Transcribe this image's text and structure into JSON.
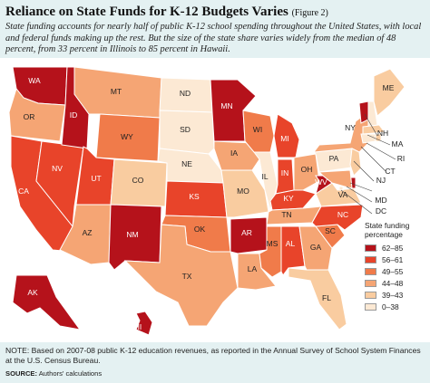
{
  "title": {
    "main": "Reliance on State Funds for K-12 Budgets Varies",
    "figure": "(Figure 2)"
  },
  "subtitle": "State funding accounts for nearly half of public K-12 school spending throughout the United States, with local and federal funds making up the rest. But the size of the state share varies widely from the median of 48 percent, from 33 percent in Illinois to 85 percent in Hawaii.",
  "legend": {
    "title": "State funding percentage",
    "items": [
      {
        "label": "62–85",
        "color": "#b5121b"
      },
      {
        "label": "56–61",
        "color": "#e8442a"
      },
      {
        "label": "49–55",
        "color": "#f07b4a"
      },
      {
        "label": "44–48",
        "color": "#f5a574"
      },
      {
        "label": "39–43",
        "color": "#f9cca0"
      },
      {
        "label": "0–38",
        "color": "#fce9d4"
      }
    ]
  },
  "states": [
    {
      "abbr": "WA",
      "bin": 0
    },
    {
      "abbr": "OR",
      "bin": 3
    },
    {
      "abbr": "CA",
      "bin": 1
    },
    {
      "abbr": "NV",
      "bin": 1
    },
    {
      "abbr": "ID",
      "bin": 0
    },
    {
      "abbr": "MT",
      "bin": 3
    },
    {
      "abbr": "WY",
      "bin": 2
    },
    {
      "abbr": "UT",
      "bin": 1
    },
    {
      "abbr": "AZ",
      "bin": 3
    },
    {
      "abbr": "CO",
      "bin": 4
    },
    {
      "abbr": "NM",
      "bin": 0
    },
    {
      "abbr": "ND",
      "bin": 5
    },
    {
      "abbr": "SD",
      "bin": 5
    },
    {
      "abbr": "NE",
      "bin": 5
    },
    {
      "abbr": "KS",
      "bin": 1
    },
    {
      "abbr": "OK",
      "bin": 2
    },
    {
      "abbr": "TX",
      "bin": 3
    },
    {
      "abbr": "MN",
      "bin": 0
    },
    {
      "abbr": "IA",
      "bin": 3
    },
    {
      "abbr": "MO",
      "bin": 4
    },
    {
      "abbr": "AR",
      "bin": 0
    },
    {
      "abbr": "LA",
      "bin": 3
    },
    {
      "abbr": "WI",
      "bin": 2
    },
    {
      "abbr": "IL",
      "bin": 5
    },
    {
      "abbr": "MI",
      "bin": 1
    },
    {
      "abbr": "IN",
      "bin": 1
    },
    {
      "abbr": "OH",
      "bin": 3
    },
    {
      "abbr": "KY",
      "bin": 1
    },
    {
      "abbr": "TN",
      "bin": 3
    },
    {
      "abbr": "MS",
      "bin": 2
    },
    {
      "abbr": "AL",
      "bin": 1
    },
    {
      "abbr": "GA",
      "bin": 3
    },
    {
      "abbr": "FL",
      "bin": 4
    },
    {
      "abbr": "SC",
      "bin": 2
    },
    {
      "abbr": "NC",
      "bin": 1
    },
    {
      "abbr": "VA",
      "bin": 4
    },
    {
      "abbr": "WV",
      "bin": 0
    },
    {
      "abbr": "PA",
      "bin": 5
    },
    {
      "abbr": "NY",
      "bin": 3
    },
    {
      "abbr": "VT",
      "bin": 0
    },
    {
      "abbr": "NH",
      "bin": 5
    },
    {
      "abbr": "ME",
      "bin": 4
    },
    {
      "abbr": "MA",
      "bin": 4
    },
    {
      "abbr": "RI",
      "bin": 4
    },
    {
      "abbr": "CT",
      "bin": 5
    },
    {
      "abbr": "NJ",
      "bin": 4
    },
    {
      "abbr": "DE",
      "bin": 0
    },
    {
      "abbr": "MD",
      "bin": 3
    },
    {
      "abbr": "DC",
      "bin": 5
    },
    {
      "abbr": "AK",
      "bin": 0
    },
    {
      "abbr": "HI",
      "bin": 0
    }
  ],
  "note": "NOTE: Based on 2007-08 public K-12 education revenues, as reported in the Annual Survey of School System Finances at the U.S. Census Bureau.",
  "source": {
    "label": "SOURCE:",
    "text": "Authors' calculations"
  }
}
